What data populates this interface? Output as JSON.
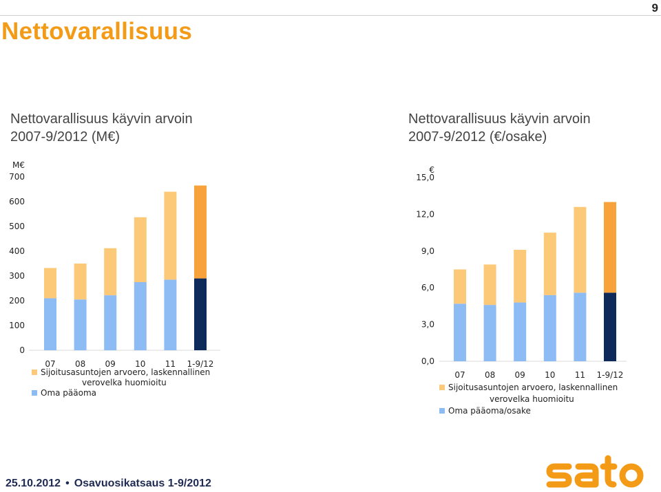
{
  "page": {
    "number": "9",
    "title": "Nettovarallisuus"
  },
  "footer": {
    "date": "25.10.2012",
    "separator": "•",
    "text": "Osavuosikatsaus 1-9/2012",
    "logo_text": "sato"
  },
  "colors": {
    "accent": "#f39a16",
    "investment_light": "#fcc978",
    "investment_last": "#f7a23b",
    "equity_light": "#8dbcf5",
    "equity_last": "#0e2a5a",
    "footer_text": "#1f2a52"
  },
  "chart_data": [
    {
      "type": "bar",
      "stacked": true,
      "title": "Nettovarallisuus käyvin arvoin 2007-9/2012 (M€)",
      "title_lines": [
        "Nettovarallisuus käyvin arvoin",
        "2007-9/2012 (M€)"
      ],
      "unit_label": "M€",
      "categories": [
        "07",
        "08",
        "09",
        "10",
        "11",
        "1-9/12"
      ],
      "ylim": [
        0,
        700
      ],
      "yticks": [
        "0",
        "100",
        "200",
        "300",
        "400",
        "500",
        "600",
        "700"
      ],
      "ytick_values": [
        0,
        100,
        200,
        300,
        400,
        500,
        600,
        700
      ],
      "grid": false,
      "legend_position": "bottom-left",
      "series": [
        {
          "name": "Oma pääoma",
          "legend_lines": [
            "Oma pääoma"
          ],
          "values": [
            210,
            205,
            222,
            275,
            285,
            290
          ]
        },
        {
          "name": "Sijoitusasuntojen arvoero, laskennallinen verovelka huomioitu",
          "legend_lines": [
            "Sijoitusasuntojen arvoero, laskennallinen",
            "verovelka huomioitu"
          ],
          "values": [
            122,
            145,
            190,
            262,
            355,
            375
          ]
        }
      ]
    },
    {
      "type": "bar",
      "stacked": true,
      "title": "Nettovarallisuus käyvin arvoin 2007-9/2012 (€/osake)",
      "title_lines": [
        "Nettovarallisuus käyvin arvoin",
        "2007-9/2012 (€/osake)"
      ],
      "unit_label": "€",
      "categories": [
        "07",
        "08",
        "09",
        "10",
        "11",
        "1-9/12"
      ],
      "ylim": [
        0,
        15
      ],
      "yticks": [
        "0,0",
        "3,0",
        "6,0",
        "9,0",
        "12,0",
        "15,0"
      ],
      "ytick_values": [
        0,
        3,
        6,
        9,
        12,
        15
      ],
      "grid": false,
      "legend_position": "bottom-left",
      "series": [
        {
          "name": "Oma pääoma/osake",
          "legend_lines": [
            "Oma pääoma/osake"
          ],
          "values": [
            4.7,
            4.6,
            4.8,
            5.4,
            5.6,
            5.6
          ]
        },
        {
          "name": "Sijoitusasuntojen arvoero, laskennallinen verovelka huomioitu",
          "legend_lines": [
            "Sijoitusasuntojen arvoero, laskennallinen",
            "verovelka huomioitu"
          ],
          "values": [
            2.8,
            3.3,
            4.3,
            5.1,
            7.0,
            7.4
          ]
        }
      ]
    }
  ]
}
